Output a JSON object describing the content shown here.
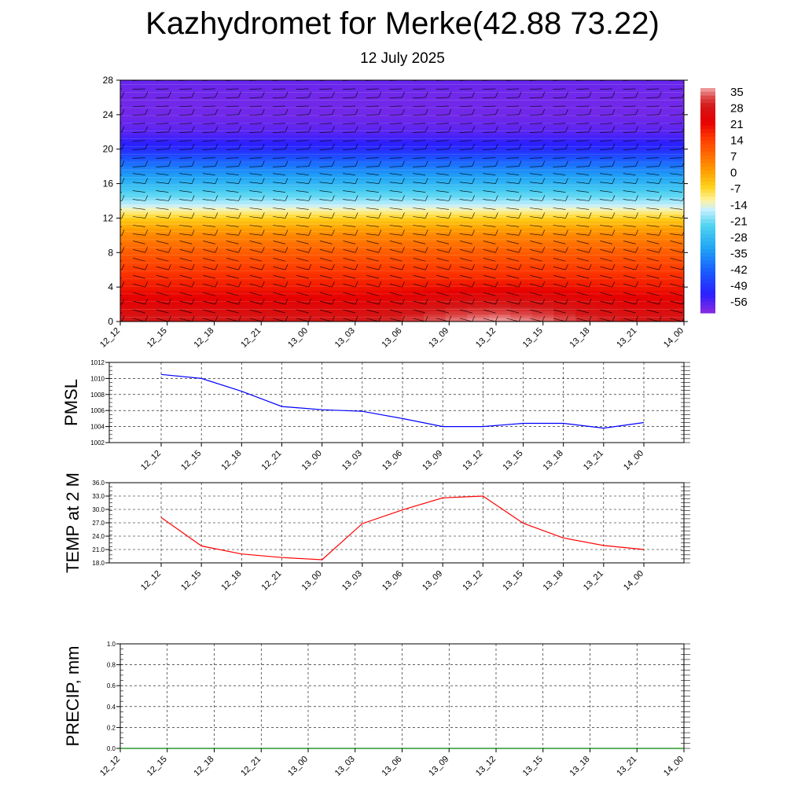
{
  "header": {
    "title": "Kazhydromet for Merke(42.88 73.22)",
    "subtitle": "12 July 2025"
  },
  "time_labels": [
    "12_12",
    "12_15",
    "12_18",
    "12_21",
    "13_00",
    "13_03",
    "13_06",
    "13_09",
    "13_12",
    "13_15",
    "13_18",
    "13_21",
    "14_00"
  ],
  "chart_data": [
    {
      "type": "heatmap",
      "xlabel": "",
      "ylabel": "",
      "y_ticks": [
        0,
        4,
        8,
        12,
        16,
        20,
        24,
        28
      ],
      "ylim": [
        0,
        28
      ],
      "x_ticks": [
        "12_12",
        "12_15",
        "12_18",
        "12_21",
        "13_00",
        "13_03",
        "13_06",
        "13_09",
        "13_12",
        "13_15",
        "13_18",
        "13_21",
        "14_00"
      ],
      "colorbar_labels": [
        "35",
        "28",
        "21",
        "14",
        "7",
        "0",
        "-7",
        "-14",
        "-21",
        "-28",
        "-35",
        "-42",
        "-49",
        "-56"
      ],
      "colorbar_range": [
        -60,
        38
      ],
      "profile": {
        "heights": [
          0,
          2,
          4,
          6,
          8,
          10,
          11,
          12,
          13,
          14,
          16,
          18,
          20,
          22,
          24,
          26,
          28
        ],
        "temps": [
          30,
          25,
          20,
          16,
          11,
          5,
          0,
          -5,
          -12,
          -18,
          -28,
          -38,
          -50,
          -56,
          -58,
          -58,
          -57
        ]
      },
      "surface_warming": [
        0,
        0,
        0,
        0,
        0,
        0,
        2,
        6,
        8,
        6,
        2,
        0,
        0
      ],
      "wind_barbs": true
    },
    {
      "type": "line",
      "ylabel": "PMSL",
      "x": [
        "12_12",
        "12_15",
        "12_18",
        "12_21",
        "13_00",
        "13_03",
        "13_06",
        "13_09",
        "13_12",
        "13_15",
        "13_18",
        "13_21",
        "14_00"
      ],
      "series": [
        {
          "values": [
            1010.5,
            1010.0,
            1008.4,
            1006.5,
            1006.1,
            1005.9,
            1005.0,
            1004.0,
            1004.0,
            1004.4,
            1004.4,
            1003.8,
            1004.5
          ],
          "color": "#0000ff"
        }
      ],
      "ylim": [
        1002,
        1012
      ],
      "y_ticks": [
        "1002",
        "1004",
        "1006",
        "1008",
        "1010",
        "1012"
      ],
      "grid": true
    },
    {
      "type": "line",
      "ylabel": "TEMP at 2 M",
      "x": [
        "12_12",
        "12_15",
        "12_18",
        "12_21",
        "13_00",
        "13_03",
        "13_06",
        "13_09",
        "13_12",
        "13_15",
        "13_18",
        "13_21",
        "14_00"
      ],
      "series": [
        {
          "values": [
            28.2,
            21.8,
            20.0,
            19.2,
            18.7,
            26.8,
            29.9,
            32.6,
            33.0,
            26.9,
            23.6,
            21.9,
            21.0
          ],
          "color": "#ff0000"
        }
      ],
      "ylim": [
        18,
        36
      ],
      "y_ticks": [
        "18.0",
        "21.0",
        "24.0",
        "27.0",
        "30.0",
        "33.0",
        "36.0"
      ],
      "grid": true
    },
    {
      "type": "line",
      "ylabel": "PRECIP, mm",
      "x": [
        "12_12",
        "12_15",
        "12_18",
        "12_21",
        "13_00",
        "13_03",
        "13_06",
        "13_09",
        "13_12",
        "13_15",
        "13_18",
        "13_21",
        "14_00"
      ],
      "series": [
        {
          "values": [
            0,
            0,
            0,
            0,
            0,
            0,
            0,
            0,
            0,
            0,
            0,
            0,
            0
          ],
          "color": "#008000"
        }
      ],
      "ylim": [
        0,
        1
      ],
      "y_ticks": [
        "0.0",
        "0.2",
        "0.4",
        "0.6",
        "0.8",
        "1.0"
      ],
      "grid": true
    }
  ]
}
